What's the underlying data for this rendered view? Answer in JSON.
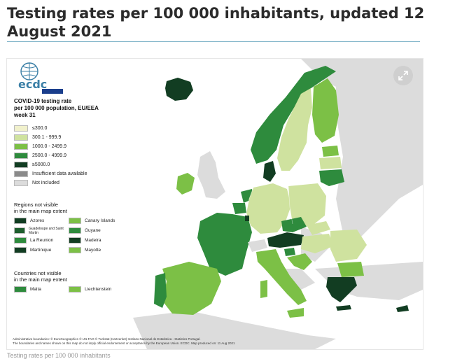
{
  "title": "Testing rates per 100 000 inhabitants, updated 12 August 2021",
  "caption": "Testing rates per 100 000 inhabitants",
  "logo": {
    "text": "ecdc"
  },
  "legend": {
    "title_lines": [
      "COVID-19 testing rate",
      "per 100 000 population, EU/EEA",
      "week 31"
    ],
    "items": [
      {
        "label": "≤300.0",
        "color": "#f1f1cc"
      },
      {
        "label": "300.1 - 999.9",
        "color": "#cfe29f"
      },
      {
        "label": "1000.0 - 2499.9",
        "color": "#7cc046"
      },
      {
        "label": "2500.0 - 4999.9",
        "color": "#2e8b3d"
      },
      {
        "label": "≥5000.0",
        "color": "#123d22"
      },
      {
        "label": "Insufficient data available",
        "color": "#8a8a8a"
      },
      {
        "label": "Not included",
        "color": "#dcdcdc"
      }
    ]
  },
  "regions": {
    "title_lines": [
      "Regions not visible",
      "in the main map extent"
    ],
    "items": [
      {
        "label": "Azores",
        "color": "#123d22"
      },
      {
        "label": "Canary Islands",
        "color": "#7cc046"
      },
      {
        "label": "Guadeloupe and Saint Martin",
        "color": "#1e5e2e"
      },
      {
        "label": "Guyane",
        "color": "#2e8b3d"
      },
      {
        "label": "La Reunion",
        "color": "#2e8b3d"
      },
      {
        "label": "Madeira",
        "color": "#123d22"
      },
      {
        "label": "Martinique",
        "color": "#123d22"
      },
      {
        "label": "Mayotte",
        "color": "#7cc046"
      }
    ]
  },
  "countries": {
    "title_lines": [
      "Countries not visible",
      "in the main map extent"
    ],
    "items": [
      {
        "label": "Malta",
        "color": "#2e8b3d"
      },
      {
        "label": "Liechtenstein",
        "color": "#7cc046"
      }
    ]
  },
  "footer": {
    "line1": "Administrative boundaries: © EuroGeographics © UN-FAO © Turkstat (Kartverket) Instituto Nacional de Estatística - Statistics Portugal.",
    "line2": "The boundaries and names shown on this map do not imply official endorsement or acceptance by the European Union. ECDC. Map produced on: 11 Aug 2021"
  },
  "map": {
    "countries": [
      {
        "id": "iceland",
        "rate_class": "≥5000.0",
        "color": "#123d22"
      },
      {
        "id": "ireland",
        "rate_class": "1000.0 - 2499.9",
        "color": "#7cc046"
      },
      {
        "id": "norway",
        "rate_class": "2500.0 - 4999.9",
        "color": "#2e8b3d"
      },
      {
        "id": "sweden",
        "rate_class": "300.1 - 999.9",
        "color": "#cfe29f"
      },
      {
        "id": "finland",
        "rate_class": "1000.0 - 2499.9",
        "color": "#7cc046"
      },
      {
        "id": "estonia",
        "rate_class": "1000.0 - 2499.9",
        "color": "#7cc046"
      },
      {
        "id": "latvia",
        "rate_class": "300.1 - 999.9",
        "color": "#cfe29f"
      },
      {
        "id": "lithuania",
        "rate_class": "2500.0 - 4999.9",
        "color": "#2e8b3d"
      },
      {
        "id": "denmark",
        "rate_class": "≥5000.0",
        "color": "#123d22"
      },
      {
        "id": "netherlands",
        "rate_class": "2500.0 - 4999.9",
        "color": "#2e8b3d"
      },
      {
        "id": "belgium",
        "rate_class": "2500.0 - 4999.9",
        "color": "#2e8b3d"
      },
      {
        "id": "germany",
        "rate_class": "300.1 - 999.9",
        "color": "#cfe29f"
      },
      {
        "id": "poland",
        "rate_class": "300.1 - 999.9",
        "color": "#cfe29f"
      },
      {
        "id": "france",
        "rate_class": "2500.0 - 4999.9",
        "color": "#2e8b3d"
      },
      {
        "id": "luxembourg",
        "rate_class": "≥5000.0",
        "color": "#123d22"
      },
      {
        "id": "czechia",
        "rate_class": "2500.0 - 4999.9",
        "color": "#2e8b3d"
      },
      {
        "id": "slovakia",
        "rate_class": "300.1 - 999.9",
        "color": "#cfe29f"
      },
      {
        "id": "austria",
        "rate_class": "≥5000.0",
        "color": "#123d22"
      },
      {
        "id": "hungary",
        "rate_class": "300.1 - 999.9",
        "color": "#cfe29f"
      },
      {
        "id": "romania",
        "rate_class": "300.1 - 999.9",
        "color": "#cfe29f"
      },
      {
        "id": "bulgaria",
        "rate_class": "1000.0 - 2499.9",
        "color": "#7cc046"
      },
      {
        "id": "slovenia",
        "rate_class": "2500.0 - 4999.9",
        "color": "#2e8b3d"
      },
      {
        "id": "croatia",
        "rate_class": "1000.0 - 2499.9",
        "color": "#7cc046"
      },
      {
        "id": "italy",
        "rate_class": "1000.0 - 2499.9",
        "color": "#7cc046"
      },
      {
        "id": "spain",
        "rate_class": "1000.0 - 2499.9",
        "color": "#7cc046"
      },
      {
        "id": "portugal",
        "rate_class": "2500.0 - 4999.9",
        "color": "#2e8b3d"
      },
      {
        "id": "greece",
        "rate_class": "≥5000.0",
        "color": "#123d22"
      },
      {
        "id": "cyprus",
        "rate_class": "≥5000.0",
        "color": "#123d22"
      },
      {
        "id": "switzerland",
        "rate_class": "Not included",
        "color": "#dcdcdc"
      }
    ]
  }
}
